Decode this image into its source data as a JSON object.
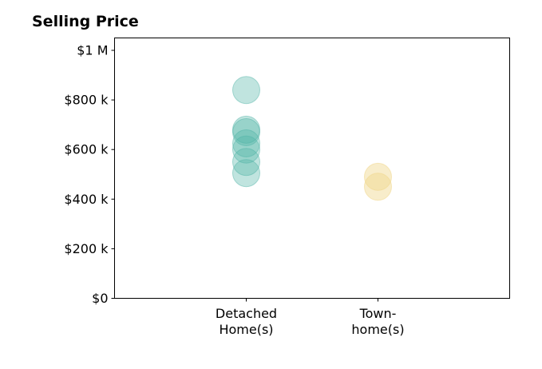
{
  "chart_data": {
    "type": "scatter",
    "title": "Selling Price",
    "xlabel": "",
    "ylabel": "",
    "ylim": [
      0,
      1050000
    ],
    "grid": false,
    "legend": "none",
    "categories": [
      [
        "Detached",
        "Home(s)"
      ],
      [
        "Town-",
        "home(s)"
      ]
    ],
    "y_ticks": [
      {
        "value": 0,
        "label": "$0"
      },
      {
        "value": 200000,
        "label": "$200 k"
      },
      {
        "value": 400000,
        "label": "$400 k"
      },
      {
        "value": 600000,
        "label": "$600 k"
      },
      {
        "value": 800000,
        "label": "$800 k"
      },
      {
        "value": 1000000,
        "label": "$1 M"
      }
    ],
    "series": [
      {
        "category_index": 0,
        "color": "#4fb3a5",
        "opacity": 0.36,
        "values": [
          840000,
          680000,
          670000,
          625000,
          600000,
          550000,
          505000
        ]
      },
      {
        "category_index": 1,
        "color": "#f0d78c",
        "opacity": 0.45,
        "values": [
          490000,
          450000
        ]
      }
    ]
  }
}
